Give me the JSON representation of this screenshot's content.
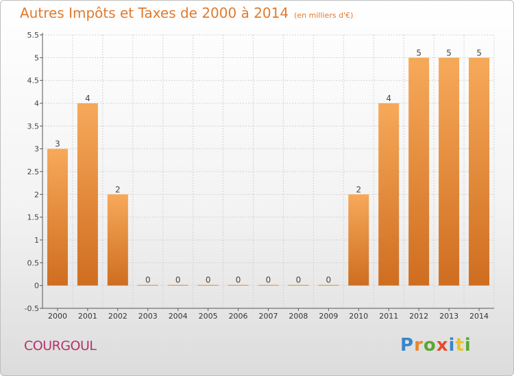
{
  "title": "Autres Impôts et Taxes de 2000 à 2014",
  "title_unit": "(en milliers d'€)",
  "commune": "COURGOUL",
  "logo": {
    "text": "Proxiti",
    "colors": [
      "#3a86c8",
      "#e8862c",
      "#5aa832",
      "#e84c2c",
      "#3a86c8",
      "#e8c42c",
      "#5aa832"
    ]
  },
  "colors": {
    "bar_light": "#f7a95a",
    "bar_dark": "#cf6d1f",
    "title": "#e07a2e",
    "commune": "#b3336a",
    "grid": "#d2d2d2"
  },
  "chart_data": {
    "type": "bar",
    "title": "Autres Impôts et Taxes de 2000 à 2014",
    "categories": [
      "2000",
      "2001",
      "2002",
      "2003",
      "2004",
      "2005",
      "2006",
      "2007",
      "2008",
      "2009",
      "2010",
      "2011",
      "2012",
      "2013",
      "2014"
    ],
    "values": [
      3,
      4,
      2,
      0,
      0,
      0,
      0,
      0,
      0,
      0,
      2,
      4,
      5,
      5,
      5
    ],
    "ylim": [
      -0.5,
      5.5
    ],
    "yticks": [
      "-0.5",
      "0",
      "0.5",
      "1",
      "1.5",
      "2",
      "2.5",
      "3",
      "3.5",
      "4",
      "4.5",
      "5",
      "5.5"
    ],
    "grid": true,
    "xlabel": "",
    "ylabel": ""
  }
}
